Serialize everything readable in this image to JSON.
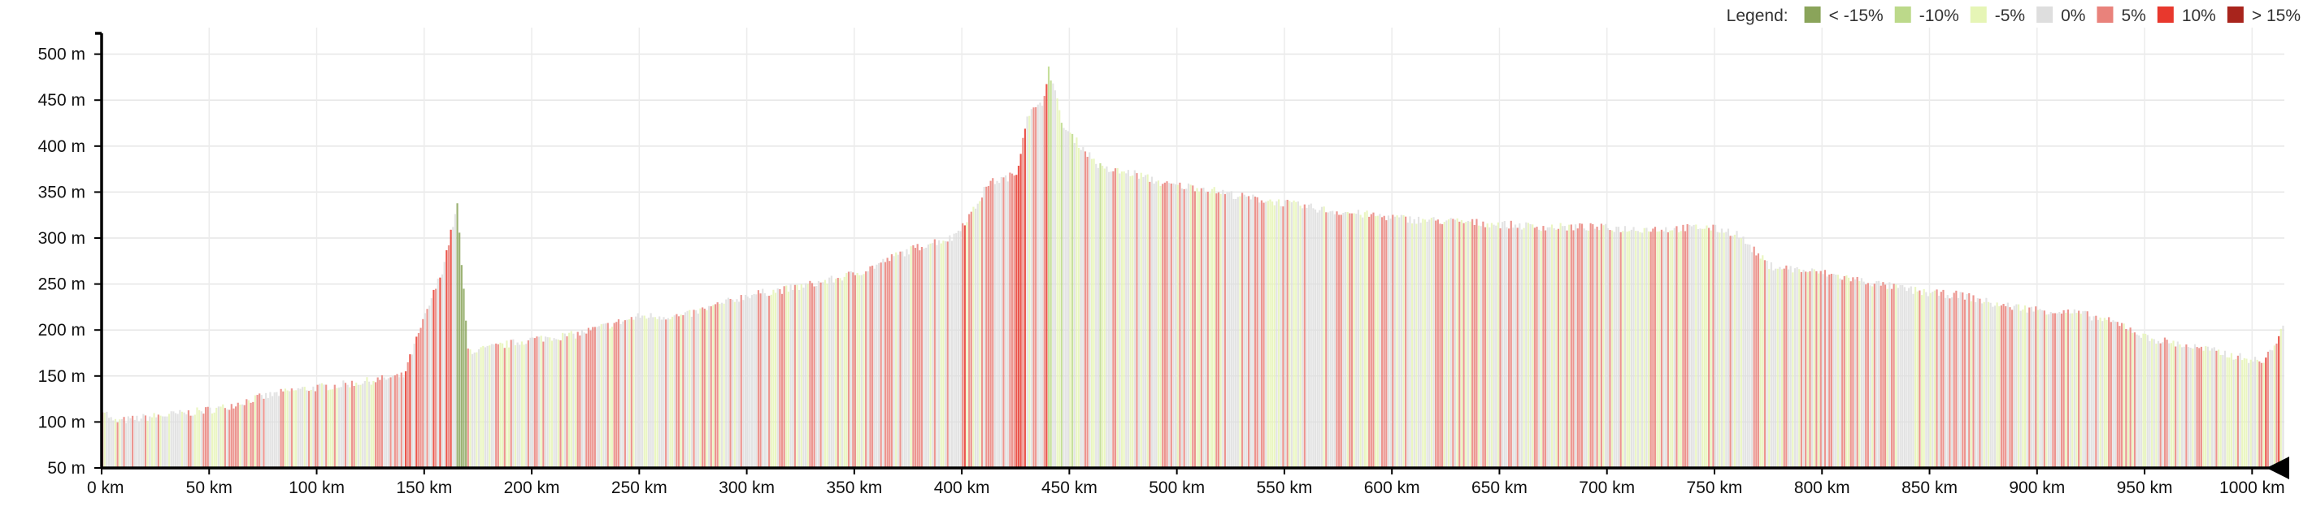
{
  "legend": {
    "title": "Legend:",
    "items": [
      {
        "label": "< -15%",
        "color": "#8aa45a"
      },
      {
        "label": "-10%",
        "color": "#bcd98a"
      },
      {
        "label": "-5%",
        "color": "#e6f5b6"
      },
      {
        "label": "0%",
        "color": "#dedede"
      },
      {
        "label": "5%",
        "color": "#e9827b"
      },
      {
        "label": "10%",
        "color": "#e8382d"
      },
      {
        "label": "> 15%",
        "color": "#a8241c"
      }
    ]
  },
  "chart_data": {
    "type": "area",
    "title": "",
    "xlabel": "",
    "ylabel": "",
    "xlim": [
      0,
      1015
    ],
    "ylim": [
      50,
      520
    ],
    "grid": true,
    "legend_position": "top-right",
    "x_ticks": [
      0,
      50,
      100,
      150,
      200,
      250,
      300,
      350,
      400,
      450,
      500,
      550,
      600,
      650,
      700,
      750,
      800,
      850,
      900,
      950,
      1000
    ],
    "x_tick_labels": [
      "0 km",
      "50 km",
      "100 km",
      "150 km",
      "200 km",
      "250 km",
      "300 km",
      "350 km",
      "400 km",
      "450 km",
      "500 km",
      "550 km",
      "600 km",
      "650 km",
      "700 km",
      "750 km",
      "800 km",
      "850 km",
      "900 km",
      "950 km",
      "1000 km"
    ],
    "y_ticks": [
      50,
      100,
      150,
      200,
      250,
      300,
      350,
      400,
      450,
      500
    ],
    "y_tick_labels": [
      "50 m",
      "100 m",
      "150 m",
      "200 m",
      "250 m",
      "300 m",
      "350 m",
      "400 m",
      "450 m",
      "500 m"
    ],
    "series": [
      {
        "x": [
          0,
          5,
          20,
          40,
          55,
          70,
          90,
          110,
          125,
          140,
          150,
          158,
          165,
          170,
          175,
          185,
          200,
          220,
          250,
          270,
          290,
          300,
          320,
          340,
          355,
          370,
          385,
          395,
          405,
          412,
          420,
          425,
          430,
          437,
          440,
          447,
          455,
          465,
          480,
          495,
          510,
          530,
          550,
          570,
          590,
          610,
          630,
          650,
          670,
          690,
          710,
          730,
          745,
          755,
          760,
          775,
          790,
          800,
          815,
          830,
          850,
          865,
          880,
          900,
          920,
          940,
          950,
          965,
          980,
          995,
          1005,
          1010,
          1015
        ],
        "y": [
          115,
          100,
          105,
          110,
          115,
          125,
          135,
          140,
          145,
          150,
          215,
          265,
          335,
          178,
          178,
          183,
          190,
          195,
          215,
          215,
          230,
          238,
          245,
          255,
          265,
          282,
          295,
          300,
          330,
          360,
          365,
          370,
          435,
          445,
          485,
          420,
          400,
          375,
          370,
          358,
          355,
          345,
          338,
          330,
          325,
          320,
          318,
          315,
          312,
          312,
          310,
          310,
          312,
          308,
          305,
          270,
          265,
          262,
          255,
          248,
          240,
          238,
          228,
          222,
          218,
          205,
          192,
          185,
          178,
          170,
          165,
          185,
          205
        ]
      }
    ]
  }
}
